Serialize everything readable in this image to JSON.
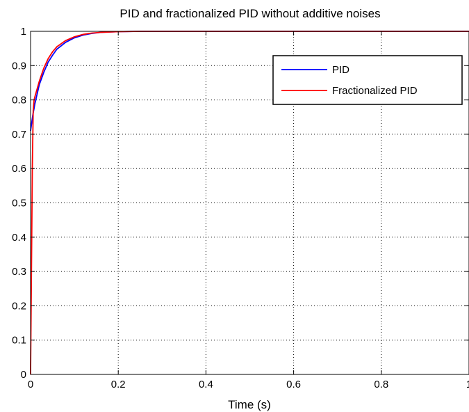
{
  "chart_data": {
    "type": "line",
    "title": "PID and fractionalized PID without additive noises",
    "xlabel": "Time (s)",
    "ylabel": "",
    "xlim": [
      0,
      1
    ],
    "ylim": [
      0,
      1
    ],
    "xticks": [
      0,
      0.2,
      0.4,
      0.6,
      0.8,
      1
    ],
    "xtick_labels": [
      "0",
      "0.2",
      "0.4",
      "0.6",
      "0.8",
      "1"
    ],
    "yticks": [
      0,
      0.1,
      0.2,
      0.3,
      0.4,
      0.5,
      0.6,
      0.7,
      0.8,
      0.9,
      1
    ],
    "ytick_labels": [
      "0",
      "0.1",
      "0.2",
      "0.3",
      "0.4",
      "0.5",
      "0.6",
      "0.7",
      "0.8",
      "0.9",
      "1"
    ],
    "grid": true,
    "legend_position": "top-right",
    "series": [
      {
        "name": "PID",
        "color": "#0000ff",
        "x": [
          0,
          0.005,
          0.01,
          0.02,
          0.03,
          0.04,
          0.05,
          0.06,
          0.08,
          0.1,
          0.12,
          0.14,
          0.16,
          0.18,
          0.2,
          0.25,
          0.3,
          0.4,
          0.5,
          0.6,
          0.7,
          0.8,
          0.9,
          1.0
        ],
        "y": [
          0.71,
          0.755,
          0.79,
          0.845,
          0.88,
          0.91,
          0.93,
          0.948,
          0.968,
          0.981,
          0.989,
          0.994,
          0.997,
          0.998,
          0.999,
          1.0,
          1.0,
          1.0,
          1.0,
          1.0,
          1.0,
          1.0,
          1.0,
          1.0
        ]
      },
      {
        "name": "Fractionalized PID",
        "color": "#ff0000",
        "x": [
          0,
          0.002,
          0.004,
          0.006,
          0.008,
          0.01,
          0.02,
          0.03,
          0.04,
          0.05,
          0.06,
          0.08,
          0.1,
          0.12,
          0.14,
          0.16,
          0.18,
          0.2,
          0.25,
          0.3,
          0.4,
          0.5,
          0.6,
          0.7,
          0.8,
          0.9,
          1.0
        ],
        "y": [
          0.0,
          0.3,
          0.6,
          0.77,
          0.8,
          0.81,
          0.855,
          0.892,
          0.92,
          0.94,
          0.955,
          0.973,
          0.984,
          0.991,
          0.995,
          0.997,
          0.998,
          0.999,
          1.0,
          1.0,
          1.0,
          1.0,
          1.0,
          1.0,
          1.0,
          1.0,
          1.0
        ]
      }
    ]
  }
}
